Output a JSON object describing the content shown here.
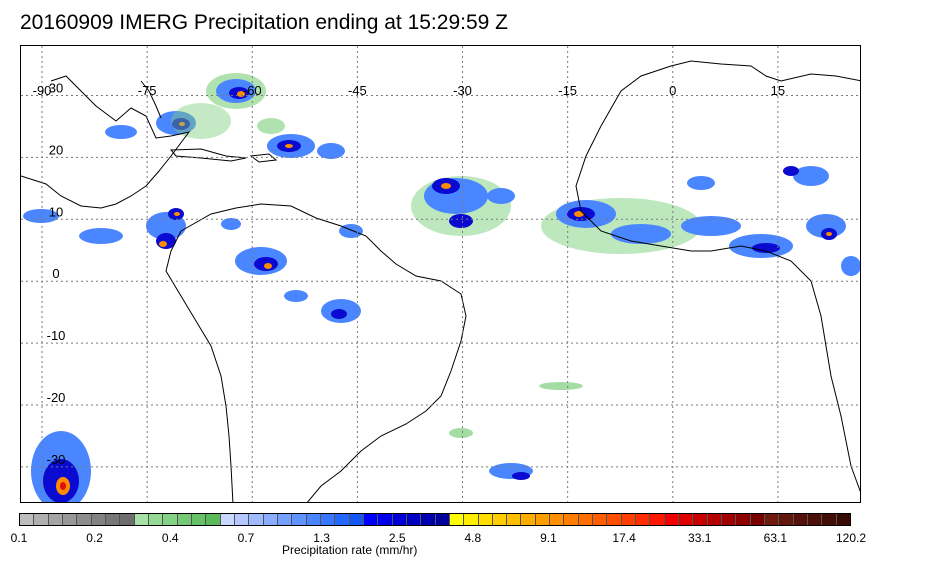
{
  "title": "20160909 IMERG Precipitation ending at 15:29:59 Z",
  "map": {
    "lon_labels": [
      "-90",
      "-75",
      "-60",
      "-45",
      "-30",
      "-15",
      "0",
      "15"
    ],
    "lat_labels": [
      "30",
      "20",
      "10",
      "0",
      "-10",
      "-20",
      "-30"
    ],
    "lon_values": [
      -90,
      -75,
      -60,
      -45,
      -30,
      -15,
      0,
      15
    ],
    "lat_values": [
      30,
      20,
      10,
      0,
      -10,
      -20,
      -30
    ],
    "extent": {
      "lon_min": -93,
      "lon_max": 27,
      "lat_min": -36,
      "lat_max": 38
    },
    "gridlines": true
  },
  "colorbar": {
    "label": "Precipitation rate (mm/hr)",
    "tick_labels": [
      "0.1",
      "0.2",
      "0.4",
      "0.7",
      "1.3",
      "2.5",
      "4.8",
      "9.1",
      "17.4",
      "33.1",
      "63.1",
      "120.2"
    ],
    "colors": [
      "#bdbdbd",
      "#b0b0b0",
      "#a4a4a4",
      "#989898",
      "#8d8d8d",
      "#828282",
      "#777777",
      "#6e6e6e",
      "#a6e2a6",
      "#94d994",
      "#84d284",
      "#74ca74",
      "#66c266",
      "#5aba5a",
      "#c8d8ff",
      "#b4c8ff",
      "#9fbaff",
      "#8aaeff",
      "#74a0ff",
      "#5f93ff",
      "#4b84ff",
      "#3777ff",
      "#2568ff",
      "#1557f5",
      "#0000ff",
      "#0000ea",
      "#0000d6",
      "#0000c2",
      "#0000ae",
      "#00009a",
      "#ffff00",
      "#ffee00",
      "#ffde00",
      "#ffce00",
      "#ffbe00",
      "#ffae00",
      "#ff9e00",
      "#ff8e00",
      "#ff7e00",
      "#ff6e00",
      "#ff5e00",
      "#ff4e00",
      "#ff3e00",
      "#ff2e00",
      "#ff1800",
      "#f00000",
      "#dc0000",
      "#c80000",
      "#b40000",
      "#a00000",
      "#8c0000",
      "#780000",
      "#6e1a0e",
      "#62160c",
      "#56120a",
      "#4c1008",
      "#420e06",
      "#380c05"
    ]
  },
  "colors": {
    "light": "#7ccf7c",
    "mid": "#4a86ff",
    "heavy": "#0a0ad0",
    "intense": "#ff8c00",
    "extreme": "#e01010",
    "coast": "#000000",
    "grid": "#7a7a7a"
  }
}
